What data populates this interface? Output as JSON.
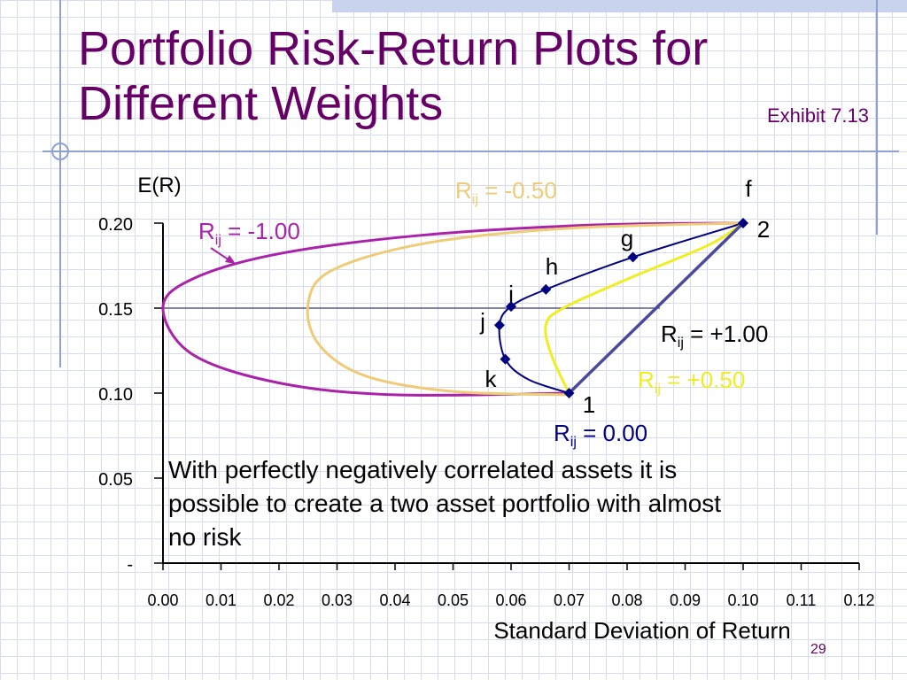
{
  "slide": {
    "title_line1": "Portfolio Risk-Return Plots for",
    "title_line2": "Different Weights",
    "exhibit": "Exhibit 7.13",
    "page_number": "29",
    "note": "With perfectly negatively correlated assets it is possible to create a two asset portfolio with almost no risk"
  },
  "colors": {
    "title": "#660066",
    "r_neg100": "#aa22aa",
    "r_neg050": "#eecc77",
    "r_000": "#000080",
    "r_pos050": "#eeee22",
    "r_pos100": "#4a4a9c",
    "axis": "#000000",
    "grid_line": "#5a5a8a"
  },
  "chart_data": {
    "type": "line",
    "title": "",
    "xlabel": "Standard Deviation of Return",
    "ylabel": "E(R)",
    "xlim": [
      0,
      0.12
    ],
    "ylim": [
      0,
      0.2
    ],
    "x_ticks": [
      0,
      0.01,
      0.02,
      0.03,
      0.04,
      0.05,
      0.06,
      0.07,
      0.08,
      0.09,
      0.1,
      0.11,
      0.12
    ],
    "x_tick_labels": [
      "0.00",
      "0.01",
      "0.02",
      "0.03",
      "0.04",
      "0.05",
      "0.06",
      "0.07",
      "0.08",
      "0.09",
      "0.10",
      "0.11",
      "0.12"
    ],
    "y_ticks": [
      0,
      0.05,
      0.1,
      0.15,
      0.2
    ],
    "y_tick_labels": [
      "-",
      "0.05",
      "0.10",
      "0.15",
      "0.20"
    ],
    "reference_line_y": 0.15,
    "series": [
      {
        "name": "Rij = -1.00",
        "label_main": "R",
        "label_sub": "ij",
        "label_rest": " = -1.00",
        "points": [
          [
            0.07,
            0.1
          ],
          [
            0.04,
            0.099
          ],
          [
            0.02,
            0.106
          ],
          [
            0.005,
            0.123
          ],
          [
            0.0,
            0.15
          ],
          [
            0.005,
            0.167
          ],
          [
            0.02,
            0.182
          ],
          [
            0.045,
            0.193
          ],
          [
            0.075,
            0.199
          ],
          [
            0.1,
            0.2
          ]
        ]
      },
      {
        "name": "Rij = -0.50",
        "label_main": "R",
        "label_sub": "ij",
        "label_rest": " = -0.50",
        "points": [
          [
            0.07,
            0.099
          ],
          [
            0.05,
            0.101
          ],
          [
            0.035,
            0.11
          ],
          [
            0.027,
            0.128
          ],
          [
            0.025,
            0.152
          ],
          [
            0.029,
            0.172
          ],
          [
            0.045,
            0.188
          ],
          [
            0.07,
            0.197
          ],
          [
            0.1,
            0.2
          ]
        ]
      },
      {
        "name": "Rij = 0.00",
        "label_main": "R",
        "label_sub": "ij",
        "label_rest": " = 0.00",
        "points": [
          [
            0.07,
            0.1
          ],
          [
            0.063,
            0.108
          ],
          [
            0.059,
            0.12
          ],
          [
            0.058,
            0.14
          ],
          [
            0.06,
            0.151
          ],
          [
            0.066,
            0.161
          ],
          [
            0.081,
            0.18
          ],
          [
            0.1,
            0.2
          ]
        ]
      },
      {
        "name": "Rij = +0.50",
        "label_main": "R",
        "label_sub": "ij",
        "label_rest": " = +0.50",
        "points": [
          [
            0.07,
            0.1
          ],
          [
            0.067,
            0.122
          ],
          [
            0.066,
            0.14
          ],
          [
            0.069,
            0.15
          ],
          [
            0.08,
            0.167
          ],
          [
            0.094,
            0.187
          ],
          [
            0.1,
            0.2
          ]
        ]
      },
      {
        "name": "Rij = +1.00",
        "label_main": "R",
        "label_sub": "ij",
        "label_rest": " = +1.00",
        "points": [
          [
            0.07,
            0.1
          ],
          [
            0.1,
            0.2
          ]
        ]
      }
    ],
    "points": [
      {
        "label": "1",
        "x": 0.07,
        "y": 0.1
      },
      {
        "label": "2",
        "x": 0.1,
        "y": 0.2
      },
      {
        "label": "f",
        "x": 0.1,
        "y": 0.2
      },
      {
        "label": "g",
        "x": 0.081,
        "y": 0.18
      },
      {
        "label": "h",
        "x": 0.066,
        "y": 0.161
      },
      {
        "label": "i",
        "x": 0.06,
        "y": 0.151
      },
      {
        "label": "j",
        "x": 0.058,
        "y": 0.14
      },
      {
        "label": "k",
        "x": 0.059,
        "y": 0.12
      }
    ]
  }
}
